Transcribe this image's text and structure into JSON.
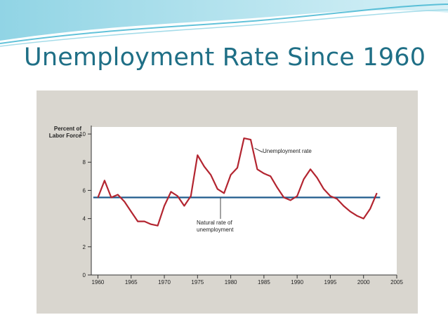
{
  "slide": {
    "title": "Unemployment Rate Since 1960",
    "title_color": "#1f6f86",
    "accent_colors": [
      "#3bb3d0",
      "#8fd3e4"
    ]
  },
  "chart_data": {
    "type": "line",
    "title": "",
    "ylabel_lines": [
      "Percent of",
      "Labor Force"
    ],
    "xlabel": "",
    "xlim": [
      1959,
      2005
    ],
    "ylim": [
      0,
      10.5
    ],
    "xticks": [
      1960,
      1965,
      1970,
      1975,
      1980,
      1985,
      1990,
      1995,
      2000,
      2005
    ],
    "yticks": [
      0,
      2,
      4,
      6,
      8,
      10
    ],
    "grid": false,
    "series": [
      {
        "name": "Unemployment rate",
        "color": "#b32530",
        "x": [
          1960,
          1961,
          1962,
          1963,
          1964,
          1965,
          1966,
          1967,
          1968,
          1969,
          1970,
          1971,
          1972,
          1973,
          1974,
          1975,
          1976,
          1977,
          1978,
          1979,
          1980,
          1981,
          1982,
          1983,
          1984,
          1985,
          1986,
          1987,
          1988,
          1989,
          1990,
          1991,
          1992,
          1993,
          1994,
          1995,
          1996,
          1997,
          1998,
          1999,
          2000,
          2001,
          2002
        ],
        "y": [
          5.5,
          6.7,
          5.5,
          5.7,
          5.2,
          4.5,
          3.8,
          3.8,
          3.6,
          3.5,
          4.9,
          5.9,
          5.6,
          4.9,
          5.6,
          8.5,
          7.7,
          7.1,
          6.1,
          5.8,
          7.1,
          7.6,
          9.7,
          9.6,
          7.5,
          7.2,
          7.0,
          6.2,
          5.5,
          5.3,
          5.6,
          6.8,
          7.5,
          6.9,
          6.1,
          5.6,
          5.4,
          4.9,
          4.5,
          4.2,
          4.0,
          4.7,
          5.8
        ]
      },
      {
        "name": "Natural rate of unemployment",
        "color": "#1f5a8c",
        "x": [
          1959.3,
          2002.5
        ],
        "y": [
          5.5,
          5.5
        ]
      }
    ],
    "annotations": [
      {
        "text": "Unemployment rate",
        "series": 0
      },
      {
        "text_lines": [
          "Natural rate of",
          "unemployment"
        ],
        "series": 1
      }
    ]
  }
}
